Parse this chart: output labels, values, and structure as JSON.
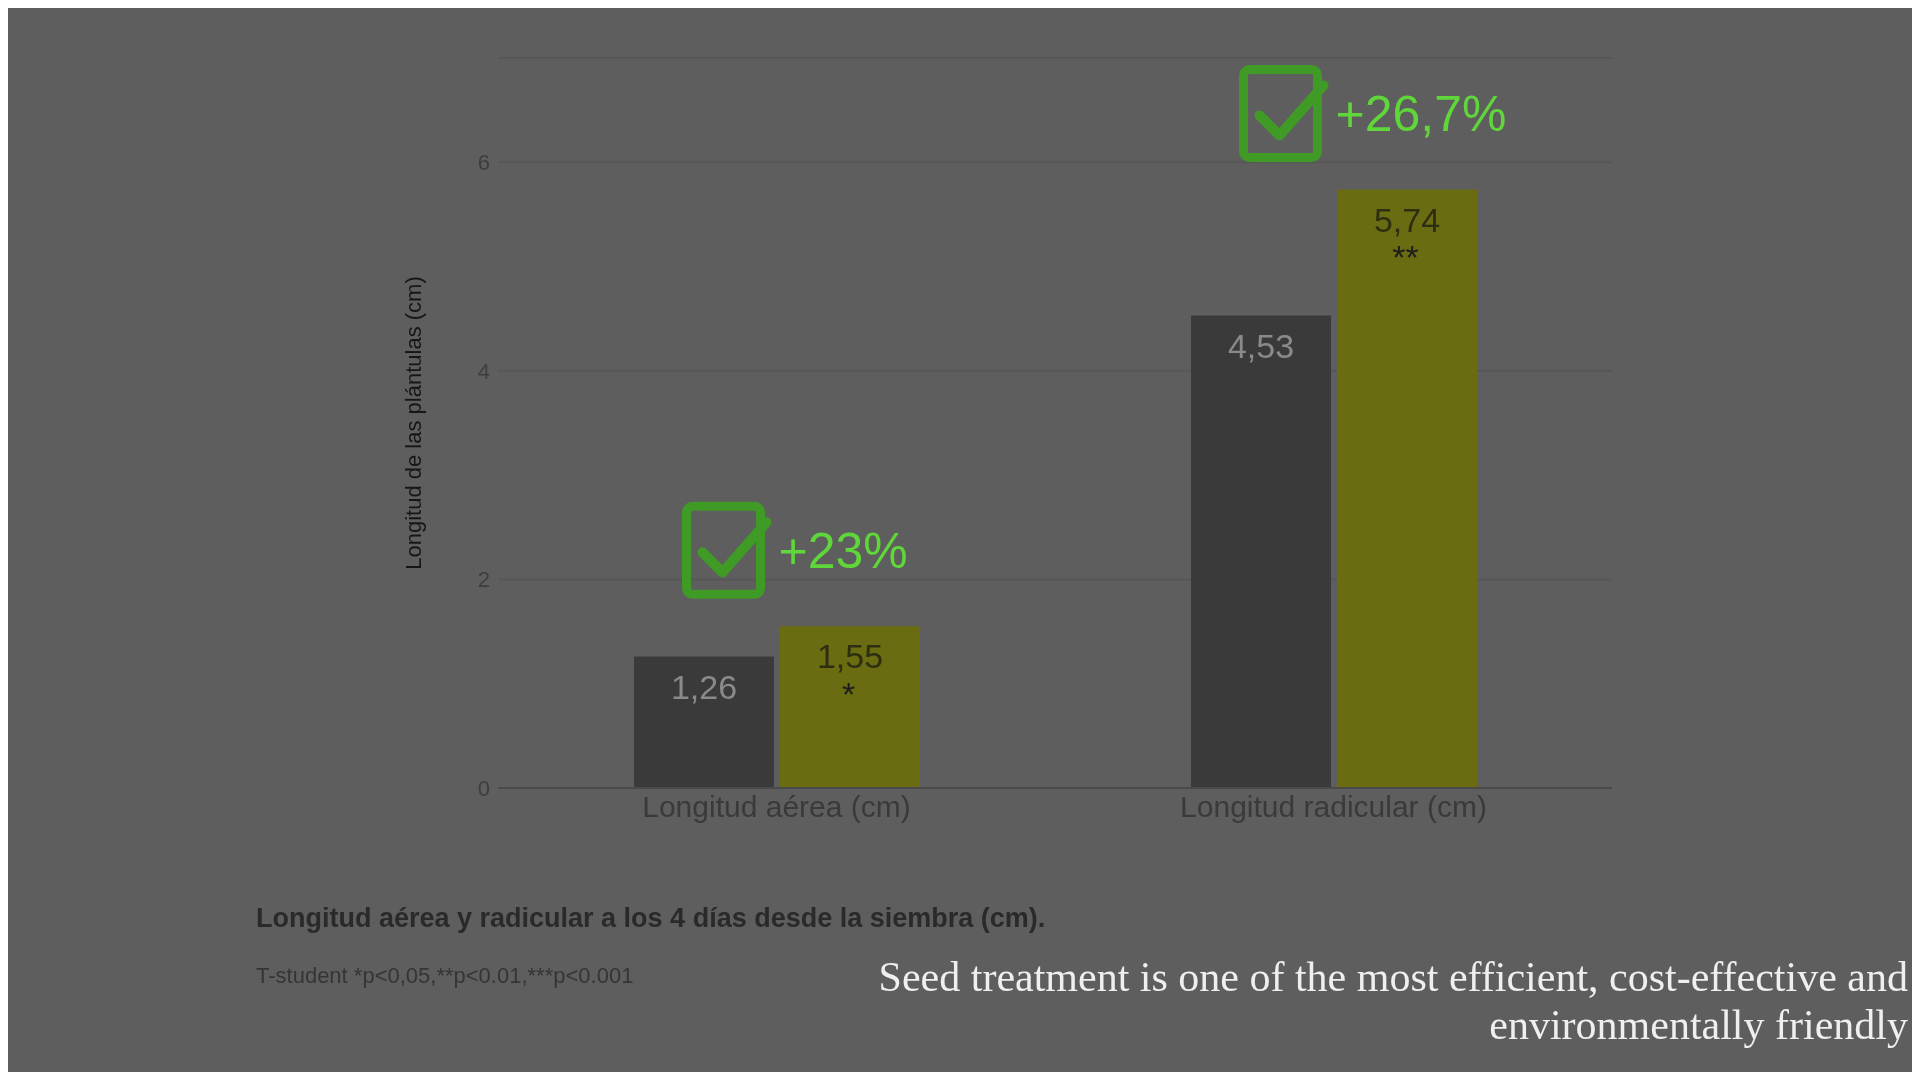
{
  "chart_data": {
    "type": "bar",
    "title": "Longitud aérea y radicular a los  4 días desde la siembra (cm).",
    "ylabel": "Longitud de las plántulas (cm)",
    "categories": [
      "Longitud aérea (cm)",
      "Longitud radicular (cm)"
    ],
    "series": [
      {
        "color": "#3a3a3a",
        "values": [
          1.26,
          4.53
        ],
        "value_labels": [
          "1,26",
          "4,53"
        ]
      },
      {
        "color": "#6a6c12",
        "values": [
          1.55,
          5.74
        ],
        "value_labels": [
          "1,55",
          "5,74"
        ]
      }
    ],
    "ylim": [
      0,
      7
    ],
    "yticks": [
      0,
      2,
      4,
      6
    ],
    "grid": "y",
    "annotations": [
      "+23%",
      "+26,7%",
      {
        "text": "*",
        "x": "Longitud aérea (cm)",
        "y": 1.55
      },
      {
        "text": "**",
        "x": "Longitud radicular (cm)",
        "y": 5.74
      },
      "T-student *p<0,05,**p<0.01,***p<0.001",
      "Seed treatment is one of the most efficient, cost-effective and environmentally friendly"
    ]
  }
}
